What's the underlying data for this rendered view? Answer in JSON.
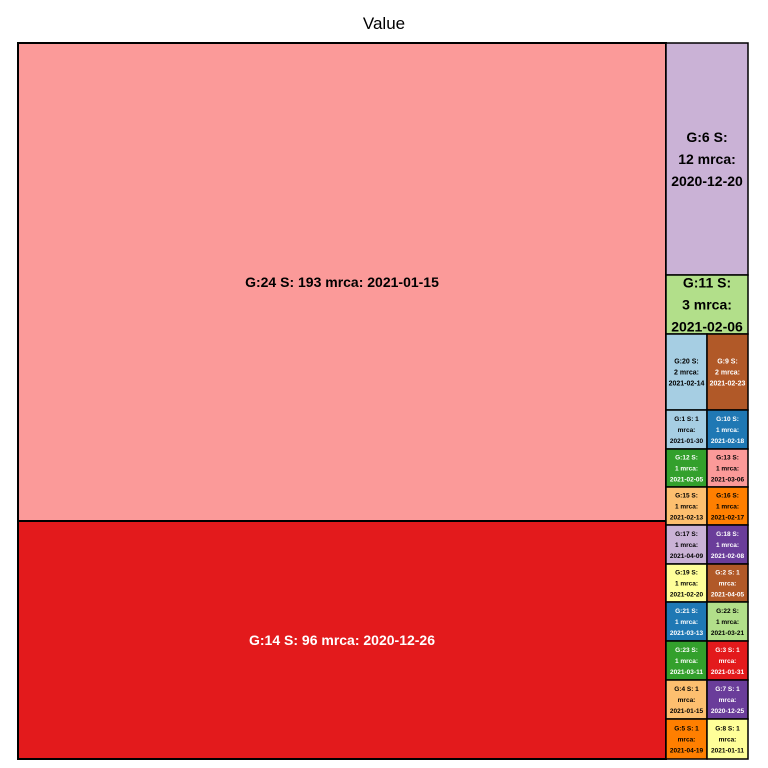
{
  "chart_data": {
    "type": "treemap",
    "title": "Value",
    "tiles": [
      {
        "label": "G:24 S: 193 mrca: 2021-01-15",
        "group": "G:24",
        "size": 193,
        "mrca": "2021-01-15",
        "color": "#FB9A99",
        "text_color": "#000000"
      },
      {
        "label": "G:14 S: 96 mrca: 2020-12-26",
        "group": "G:14",
        "size": 96,
        "mrca": "2020-12-26",
        "color": "#E31A1C",
        "text_color": "#ffffff"
      },
      {
        "label": "G:6 S: 12 mrca: 2020-12-20",
        "group": "G:6",
        "size": 12,
        "mrca": "2020-12-20",
        "color": "#CAB2D6",
        "text_color": "#000000"
      },
      {
        "label": "G:11 S: 3 mrca: 2021-02-06",
        "group": "G:11",
        "size": 3,
        "mrca": "2021-02-06",
        "color": "#B2DF8A",
        "text_color": "#000000"
      },
      {
        "label": "G:20 S: 2 mrca: 2021-02-14",
        "group": "G:20",
        "size": 2,
        "mrca": "2021-02-14",
        "color": "#A6CEE3",
        "text_color": "#000000"
      },
      {
        "label": "G:9 S: 2 mrca: 2021-02-23",
        "group": "G:9",
        "size": 2,
        "mrca": "2021-02-23",
        "color": "#B15928",
        "text_color": "#ffffff"
      },
      {
        "label": "G:1 S: 1 mrca: 2021-01-30",
        "group": "G:1",
        "size": 1,
        "mrca": "2021-01-30",
        "color": "#A6CEE3",
        "text_color": "#000000"
      },
      {
        "label": "G:10 S: 1 mrca: 2021-02-18",
        "group": "G:10",
        "size": 1,
        "mrca": "2021-02-18",
        "color": "#1F78B4",
        "text_color": "#ffffff"
      },
      {
        "label": "G:12 S: 1 mrca: 2021-02-05",
        "group": "G:12",
        "size": 1,
        "mrca": "2021-02-05",
        "color": "#33A02C",
        "text_color": "#ffffff"
      },
      {
        "label": "G:13 S: 1 mrca: 2021-03-06",
        "group": "G:13",
        "size": 1,
        "mrca": "2021-03-06",
        "color": "#FB9A99",
        "text_color": "#000000"
      },
      {
        "label": "G:15 S: 1 mrca: 2021-02-13",
        "group": "G:15",
        "size": 1,
        "mrca": "2021-02-13",
        "color": "#FDBF6F",
        "text_color": "#000000"
      },
      {
        "label": "G:16 S: 1 mrca: 2021-02-17",
        "group": "G:16",
        "size": 1,
        "mrca": "2021-02-17",
        "color": "#FF7F00",
        "text_color": "#000000"
      },
      {
        "label": "G:17 S: 1 mrca: 2021-04-09",
        "group": "G:17",
        "size": 1,
        "mrca": "2021-04-09",
        "color": "#CAB2D6",
        "text_color": "#000000"
      },
      {
        "label": "G:18 S: 1 mrca: 2021-02-08",
        "group": "G:18",
        "size": 1,
        "mrca": "2021-02-08",
        "color": "#6A3D9A",
        "text_color": "#ffffff"
      },
      {
        "label": "G:19 S: 1 mrca: 2021-02-20",
        "group": "G:19",
        "size": 1,
        "mrca": "2021-02-20",
        "color": "#FFFF99",
        "text_color": "#000000"
      },
      {
        "label": "G:2 S: 1 mrca: 2021-04-05",
        "group": "G:2",
        "size": 1,
        "mrca": "2021-04-05",
        "color": "#B15928",
        "text_color": "#ffffff"
      },
      {
        "label": "G:21 S: 1 mrca: 2021-03-13",
        "group": "G:21",
        "size": 1,
        "mrca": "2021-03-13",
        "color": "#1F78B4",
        "text_color": "#ffffff"
      },
      {
        "label": "G:22 S: 1 mrca: 2021-03-21",
        "group": "G:22",
        "size": 1,
        "mrca": "2021-03-21",
        "color": "#B2DF8A",
        "text_color": "#000000"
      },
      {
        "label": "G:23 S: 1 mrca: 2021-03-11",
        "group": "G:23",
        "size": 1,
        "mrca": "2021-03-11",
        "color": "#33A02C",
        "text_color": "#ffffff"
      },
      {
        "label": "G:3 S: 1 mrca: 2021-01-31",
        "group": "G:3",
        "size": 1,
        "mrca": "2021-01-31",
        "color": "#E31A1C",
        "text_color": "#ffffff"
      },
      {
        "label": "G:4 S: 1 mrca: 2021-01-15",
        "group": "G:4",
        "size": 1,
        "mrca": "2021-01-15",
        "color": "#FDBF6F",
        "text_color": "#000000"
      },
      {
        "label": "G:7 S: 1 mrca: 2020-12-25",
        "group": "G:7",
        "size": 1,
        "mrca": "2020-12-25",
        "color": "#6A3D9A",
        "text_color": "#ffffff"
      },
      {
        "label": "G:5 S: 1 mrca: 2021-04-19",
        "group": "G:5",
        "size": 1,
        "mrca": "2021-04-19",
        "color": "#FF7F00",
        "text_color": "#000000"
      },
      {
        "label": "G:8 S: 1 mrca: 2021-01-11",
        "group": "G:8",
        "size": 1,
        "mrca": "2021-01-11",
        "color": "#FFFF99",
        "text_color": "#000000"
      }
    ]
  }
}
